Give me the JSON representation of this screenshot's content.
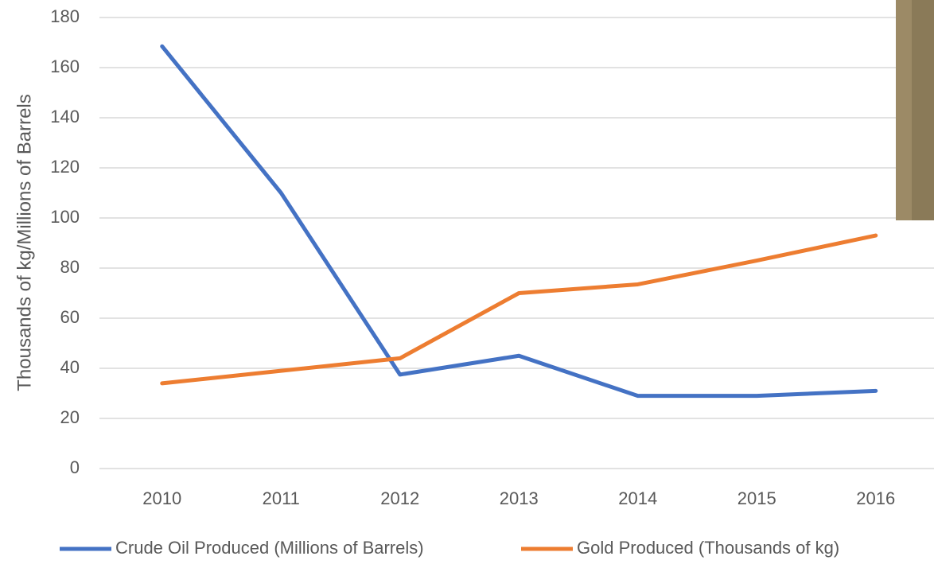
{
  "chart_data": {
    "type": "line",
    "y_label": "Thousands of kg/Millions of Barrels",
    "categories": [
      "2010",
      "2011",
      "2012",
      "2013",
      "2014",
      "2015",
      "2016"
    ],
    "series": [
      {
        "name": "Crude Oil Produced (Millions of Barrels)",
        "color": "#4472c4",
        "values": [
          168.5,
          110,
          37.5,
          45,
          29,
          29,
          31
        ]
      },
      {
        "name": "Gold Produced (Thousands of kg)",
        "color": "#ed7d31",
        "values": [
          34,
          39,
          44,
          70,
          73.5,
          83,
          93
        ]
      }
    ],
    "ylim": [
      0,
      180
    ],
    "yticks": [
      0,
      20,
      40,
      60,
      80,
      100,
      120,
      140,
      160,
      180
    ],
    "grid": true
  }
}
